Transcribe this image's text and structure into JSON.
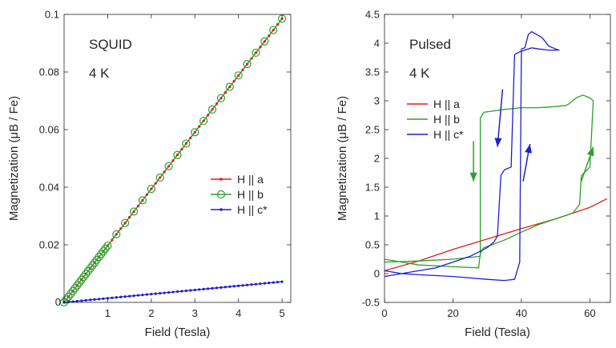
{
  "chart_data": [
    {
      "type": "line",
      "panel": "left",
      "annotations": [
        "SQUID",
        "4 K"
      ],
      "xlabel": "Field (Tesla)",
      "ylabel": "Magnetization (μB / Fe)",
      "xlim": [
        0,
        5.2
      ],
      "ylim": [
        0,
        0.1
      ],
      "xticks": [
        1,
        2,
        3,
        4,
        5
      ],
      "yticks": [
        0,
        0.02,
        0.04,
        0.06,
        0.08,
        0.1
      ],
      "ytick_labels": [
        "0",
        "0.02",
        "0.04",
        "0.06",
        "0.08",
        "0.1"
      ],
      "grid": false,
      "legend": "right",
      "series": [
        {
          "name": "H || a",
          "color": "#e41a1c",
          "marker": "dot",
          "x": [
            0,
            5
          ],
          "y": [
            0,
            0.0985
          ]
        },
        {
          "name": "H || b",
          "color": "#2ca02c",
          "marker": "circle",
          "x": [
            0,
            5
          ],
          "y": [
            0,
            0.0985
          ]
        },
        {
          "name": "H || c*",
          "color": "#1f1fcf",
          "marker": "dot",
          "x": [
            0,
            5
          ],
          "y": [
            0,
            0.0072
          ]
        }
      ]
    },
    {
      "type": "line",
      "panel": "right",
      "annotations": [
        "Pulsed",
        "4 K"
      ],
      "xlabel": "Field (Tesla)",
      "ylabel": "Magnetization (μB / Fe)",
      "xlim": [
        0,
        66
      ],
      "ylim": [
        -0.5,
        4.5
      ],
      "xticks": [
        0,
        20,
        40,
        60
      ],
      "yticks": [
        -0.5,
        0,
        0.5,
        1,
        1.5,
        2,
        2.5,
        3,
        3.5,
        4,
        4.5
      ],
      "ytick_labels": [
        "-0.5",
        "0",
        "0.5",
        "1",
        "1.5",
        "2",
        "2.5",
        "3",
        "3.5",
        "4",
        "4.5"
      ],
      "grid": false,
      "legend": "upper-left",
      "series": [
        {
          "name": "H || a",
          "color": "#e41a1c",
          "x": [
            0,
            10,
            20,
            30,
            40,
            50,
            60,
            65
          ],
          "y": [
            0.05,
            0.22,
            0.42,
            0.6,
            0.78,
            0.95,
            1.15,
            1.3
          ]
        },
        {
          "name": "H || b",
          "color": "#2ca02c",
          "x": [
            0,
            5,
            10,
            20,
            27.5,
            28,
            29,
            35,
            40,
            45,
            50,
            55,
            57,
            57.5,
            60,
            61,
            60,
            58,
            56,
            54,
            53,
            50,
            45,
            40,
            35,
            29,
            28.5,
            28,
            28,
            20,
            10,
            0
          ],
          "y": [
            0.25,
            0.2,
            0.15,
            0.12,
            0.1,
            0.35,
            0.45,
            0.58,
            0.72,
            0.85,
            0.95,
            1.05,
            1.2,
            1.7,
            1.85,
            3.0,
            3.05,
            3.1,
            3.05,
            2.95,
            2.92,
            2.9,
            2.88,
            2.88,
            2.85,
            2.8,
            2.75,
            2.7,
            0.3,
            0.25,
            0.22,
            0.2
          ]
        },
        {
          "name": "H || c*",
          "color": "#1f1fcf",
          "x": [
            0,
            5,
            10,
            20,
            30,
            35,
            38,
            39.5,
            40,
            41,
            42,
            43,
            46,
            48,
            50,
            51,
            48,
            45,
            43,
            42,
            41,
            39.5,
            38.5,
            38,
            37,
            35,
            34,
            33,
            32,
            30,
            25,
            20,
            15,
            10,
            5,
            0
          ],
          "y": [
            0.05,
            0.0,
            -0.02,
            -0.05,
            -0.1,
            -0.12,
            -0.1,
            0.2,
            3.9,
            3.92,
            4.15,
            4.2,
            4.1,
            3.95,
            3.9,
            3.88,
            3.88,
            3.9,
            3.92,
            3.9,
            3.88,
            3.85,
            3.82,
            3.8,
            1.85,
            1.8,
            1.7,
            0.65,
            0.55,
            0.45,
            0.3,
            0.2,
            0.1,
            0.05,
            0.0,
            -0.05
          ]
        }
      ],
      "arrows": [
        {
          "color": "#2ca02c",
          "from": [
            26,
            2.3
          ],
          "to": [
            26,
            1.6
          ]
        },
        {
          "color": "#2ca02c",
          "from": [
            57.5,
            1.6
          ],
          "to": [
            61,
            2.2
          ]
        },
        {
          "color": "#1f1fcf",
          "from": [
            34.5,
            3.2
          ],
          "to": [
            33,
            2.2
          ]
        },
        {
          "color": "#1f1fcf",
          "from": [
            40.5,
            1.6
          ],
          "to": [
            42.5,
            2.25
          ]
        }
      ]
    }
  ]
}
